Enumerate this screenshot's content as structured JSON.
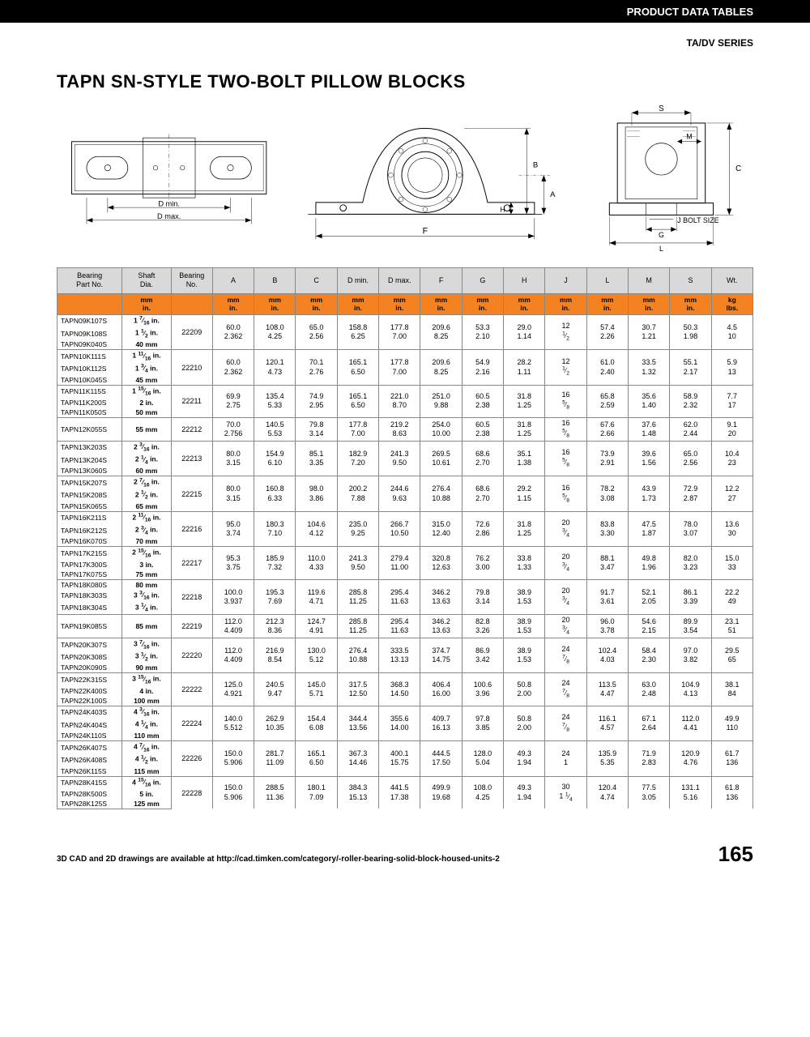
{
  "header": {
    "section": "PRODUCT DATA TABLES",
    "series": "TA/DV SERIES"
  },
  "title": "TAPN SN-STYLE TWO-BOLT PILLOW BLOCKS",
  "diagram_labels": {
    "d1_dmin": "D min.",
    "d1_dmax": "D max.",
    "d2_F": "F",
    "d2_A": "A",
    "d2_B": "B",
    "d2_H": "H",
    "d3_S": "S",
    "d3_M": "M",
    "d3_C": "C",
    "d3_J": "J BOLT SIZE",
    "d3_G": "G",
    "d3_L": "L"
  },
  "table": {
    "columns": [
      "Bearing\nPart No.",
      "Shaft\nDia.",
      "Bearing\nNo.",
      "A",
      "B",
      "C",
      "D min.",
      "D max.",
      "F",
      "G",
      "H",
      "J",
      "L",
      "M",
      "S",
      "Wt."
    ],
    "unit_row_top": [
      "",
      "mm",
      "",
      "mm",
      "mm",
      "mm",
      "mm",
      "mm",
      "mm",
      "mm",
      "mm",
      "mm",
      "mm",
      "mm",
      "mm",
      "kg"
    ],
    "unit_row_bottom": [
      "",
      "in.",
      "",
      "in.",
      "in.",
      "in.",
      "in.",
      "in.",
      "in.",
      "in.",
      "in.",
      "in.",
      "in.",
      "in.",
      "in.",
      "lbs."
    ],
    "groups": [
      {
        "parts": [
          "TAPN09K107S",
          "TAPN09K108S",
          "TAPN09K040S"
        ],
        "shafts": [
          "1 7/16 in.",
          "1 1/2 in.",
          "40 mm"
        ],
        "bno": "22209",
        "mm": [
          "60.0",
          "108.0",
          "65.0",
          "158.8",
          "177.8",
          "209.6",
          "53.3",
          "29.0",
          "12",
          "57.4",
          "30.7",
          "50.3",
          "4.5"
        ],
        "in": [
          "2.362",
          "4.25",
          "2.56",
          "6.25",
          "7.00",
          "8.25",
          "2.10",
          "1.14",
          "1/2",
          "2.26",
          "1.21",
          "1.98",
          "10"
        ]
      },
      {
        "parts": [
          "TAPN10K111S",
          "TAPN10K112S",
          "TAPN10K045S"
        ],
        "shafts": [
          "1 11/16 in.",
          "1 3/4 in.",
          "45 mm"
        ],
        "bno": "22210",
        "mm": [
          "60.0",
          "120.1",
          "70.1",
          "165.1",
          "177.8",
          "209.6",
          "54.9",
          "28.2",
          "12",
          "61.0",
          "33.5",
          "55.1",
          "5.9"
        ],
        "in": [
          "2.362",
          "4.73",
          "2.76",
          "6.50",
          "7.00",
          "8.25",
          "2.16",
          "1.11",
          "1/2",
          "2.40",
          "1.32",
          "2.17",
          "13"
        ]
      },
      {
        "parts": [
          "TAPN11K115S",
          "TAPN11K200S",
          "TAPN11K050S"
        ],
        "shafts": [
          "1 15/16 in.",
          "2 in.",
          "50 mm"
        ],
        "bno": "22211",
        "mm": [
          "69.9",
          "135.4",
          "74.9",
          "165.1",
          "221.0",
          "251.0",
          "60.5",
          "31.8",
          "16",
          "65.8",
          "35.6",
          "58.9",
          "7.7"
        ],
        "in": [
          "2.75",
          "5.33",
          "2.95",
          "6.50",
          "8.70",
          "9.88",
          "2.38",
          "1.25",
          "5/8",
          "2.59",
          "1.40",
          "2.32",
          "17"
        ]
      },
      {
        "parts": [
          "TAPN12K055S"
        ],
        "shafts": [
          "55 mm"
        ],
        "bno": "22212",
        "mm": [
          "70.0",
          "140.5",
          "79.8",
          "177.8",
          "219.2",
          "254.0",
          "60.5",
          "31.8",
          "16",
          "67.6",
          "37.6",
          "62.0",
          "9.1"
        ],
        "in": [
          "2.756",
          "5.53",
          "3.14",
          "7.00",
          "8.63",
          "10.00",
          "2.38",
          "1.25",
          "5/8",
          "2.66",
          "1.48",
          "2.44",
          "20"
        ]
      },
      {
        "parts": [
          "TAPN13K203S",
          "TAPN13K204S",
          "TAPN13K060S"
        ],
        "shafts": [
          "2 3/16 in.",
          "2 1/4 in.",
          "60 mm"
        ],
        "bno": "22213",
        "mm": [
          "80.0",
          "154.9",
          "85.1",
          "182.9",
          "241.3",
          "269.5",
          "68.6",
          "35.1",
          "16",
          "73.9",
          "39.6",
          "65.0",
          "10.4"
        ],
        "in": [
          "3.15",
          "6.10",
          "3.35",
          "7.20",
          "9.50",
          "10.61",
          "2.70",
          "1.38",
          "5/8",
          "2.91",
          "1.56",
          "2.56",
          "23"
        ]
      },
      {
        "parts": [
          "TAPN15K207S",
          "TAPN15K208S",
          "TAPN15K065S"
        ],
        "shafts": [
          "2 7/16 in.",
          "2 1/2 in.",
          "65 mm"
        ],
        "bno": "22215",
        "mm": [
          "80.0",
          "160.8",
          "98.0",
          "200.2",
          "244.6",
          "276.4",
          "68.6",
          "29.2",
          "16",
          "78.2",
          "43.9",
          "72.9",
          "12.2"
        ],
        "in": [
          "3.15",
          "6.33",
          "3.86",
          "7.88",
          "9.63",
          "10.88",
          "2.70",
          "1.15",
          "5/8",
          "3.08",
          "1.73",
          "2.87",
          "27"
        ]
      },
      {
        "parts": [
          "TAPN16K211S",
          "TAPN16K212S",
          "TAPN16K070S"
        ],
        "shafts": [
          "2 11/16 in.",
          "2 3/4 in.",
          "70 mm"
        ],
        "bno": "22216",
        "mm": [
          "95.0",
          "180.3",
          "104.6",
          "235.0",
          "266.7",
          "315.0",
          "72.6",
          "31.8",
          "20",
          "83.8",
          "47.5",
          "78.0",
          "13.6"
        ],
        "in": [
          "3.74",
          "7.10",
          "4.12",
          "9.25",
          "10.50",
          "12.40",
          "2.86",
          "1.25",
          "3/4",
          "3.30",
          "1.87",
          "3.07",
          "30"
        ]
      },
      {
        "parts": [
          "TAPN17K215S",
          "TAPN17K300S",
          "TAPN17K075S"
        ],
        "shafts": [
          "2 15/16 in.",
          "3 in.",
          "75 mm"
        ],
        "bno": "22217",
        "mm": [
          "95.3",
          "185.9",
          "110.0",
          "241.3",
          "279.4",
          "320.8",
          "76.2",
          "33.8",
          "20",
          "88.1",
          "49.8",
          "82.0",
          "15.0"
        ],
        "in": [
          "3.75",
          "7.32",
          "4.33",
          "9.50",
          "11.00",
          "12.63",
          "3.00",
          "1.33",
          "3/4",
          "3.47",
          "1.96",
          "3.23",
          "33"
        ]
      },
      {
        "parts": [
          "TAPN18K080S",
          "TAPN18K303S",
          "TAPN18K304S"
        ],
        "shafts": [
          "80 mm",
          "3 3/16 in.",
          "3 1/4 in."
        ],
        "bno": "22218",
        "mm": [
          "100.0",
          "195.3",
          "119.6",
          "285.8",
          "295.4",
          "346.2",
          "79.8",
          "38.9",
          "20",
          "91.7",
          "52.1",
          "86.1",
          "22.2"
        ],
        "in": [
          "3.937",
          "7.69",
          "4.71",
          "11.25",
          "11.63",
          "13.63",
          "3.14",
          "1.53",
          "3/4",
          "3.61",
          "2.05",
          "3.39",
          "49"
        ]
      },
      {
        "parts": [
          "TAPN19K085S"
        ],
        "shafts": [
          "85 mm"
        ],
        "bno": "22219",
        "mm": [
          "112.0",
          "212.3",
          "124.7",
          "285.8",
          "295.4",
          "346.2",
          "82.8",
          "38.9",
          "20",
          "96.0",
          "54.6",
          "89.9",
          "23.1"
        ],
        "in": [
          "4.409",
          "8.36",
          "4.91",
          "11.25",
          "11.63",
          "13.63",
          "3.26",
          "1.53",
          "3/4",
          "3.78",
          "2.15",
          "3.54",
          "51"
        ]
      },
      {
        "parts": [
          "TAPN20K307S",
          "TAPN20K308S",
          "TAPN20K090S"
        ],
        "shafts": [
          "3 7/16 in.",
          "3 1/2 in.",
          "90 mm"
        ],
        "bno": "22220",
        "mm": [
          "112.0",
          "216.9",
          "130.0",
          "276.4",
          "333.5",
          "374.7",
          "86.9",
          "38.9",
          "24",
          "102.4",
          "58.4",
          "97.0",
          "29.5"
        ],
        "in": [
          "4.409",
          "8.54",
          "5.12",
          "10.88",
          "13.13",
          "14.75",
          "3.42",
          "1.53",
          "7/8",
          "4.03",
          "2.30",
          "3.82",
          "65"
        ]
      },
      {
        "parts": [
          "TAPN22K315S",
          "TAPN22K400S",
          "TAPN22K100S"
        ],
        "shafts": [
          "3 15/16 in.",
          "4 in.",
          "100 mm"
        ],
        "bno": "22222",
        "mm": [
          "125.0",
          "240.5",
          "145.0",
          "317.5",
          "368.3",
          "406.4",
          "100.6",
          "50.8",
          "24",
          "113.5",
          "63.0",
          "104.9",
          "38.1"
        ],
        "in": [
          "4.921",
          "9.47",
          "5.71",
          "12.50",
          "14.50",
          "16.00",
          "3.96",
          "2.00",
          "7/8",
          "4.47",
          "2.48",
          "4.13",
          "84"
        ]
      },
      {
        "parts": [
          "TAPN24K403S",
          "TAPN24K404S",
          "TAPN24K110S"
        ],
        "shafts": [
          "4 3/16 in.",
          "4 1/4 in.",
          "110 mm"
        ],
        "bno": "22224",
        "mm": [
          "140.0",
          "262.9",
          "154.4",
          "344.4",
          "355.6",
          "409.7",
          "97.8",
          "50.8",
          "24",
          "116.1",
          "67.1",
          "112.0",
          "49.9"
        ],
        "in": [
          "5.512",
          "10.35",
          "6.08",
          "13.56",
          "14.00",
          "16.13",
          "3.85",
          "2.00",
          "7/8",
          "4.57",
          "2.64",
          "4.41",
          "110"
        ]
      },
      {
        "parts": [
          "TAPN26K407S",
          "TAPN26K408S",
          "TAPN26K115S"
        ],
        "shafts": [
          "4 7/16 in.",
          "4 1/2 in.",
          "115 mm"
        ],
        "bno": "22226",
        "mm": [
          "150.0",
          "281.7",
          "165.1",
          "367.3",
          "400.1",
          "444.5",
          "128.0",
          "49.3",
          "24",
          "135.9",
          "71.9",
          "120.9",
          "61.7"
        ],
        "in": [
          "5.906",
          "11.09",
          "6.50",
          "14.46",
          "15.75",
          "17.50",
          "5.04",
          "1.94",
          "1",
          "5.35",
          "2.83",
          "4.76",
          "136"
        ]
      },
      {
        "parts": [
          "TAPN28K415S",
          "TAPN28K500S",
          "TAPN28K125S"
        ],
        "shafts": [
          "4 15/16 in.",
          "5 in.",
          "125 mm"
        ],
        "bno": "22228",
        "mm": [
          "150.0",
          "288.5",
          "180.1",
          "384.3",
          "441.5",
          "499.9",
          "108.0",
          "49.3",
          "30",
          "120.4",
          "77.5",
          "131.1",
          "61.8"
        ],
        "in": [
          "5.906",
          "11.36",
          "7.09",
          "15.13",
          "17.38",
          "19.68",
          "4.25",
          "1.94",
          "1 1/4",
          "4.74",
          "3.05",
          "5.16",
          "136"
        ]
      }
    ]
  },
  "footer": {
    "note": "3D CAD and 2D drawings are available at http://cad.timken.com/category/-roller-bearing-solid-block-housed-units-2",
    "page_number": "165"
  }
}
